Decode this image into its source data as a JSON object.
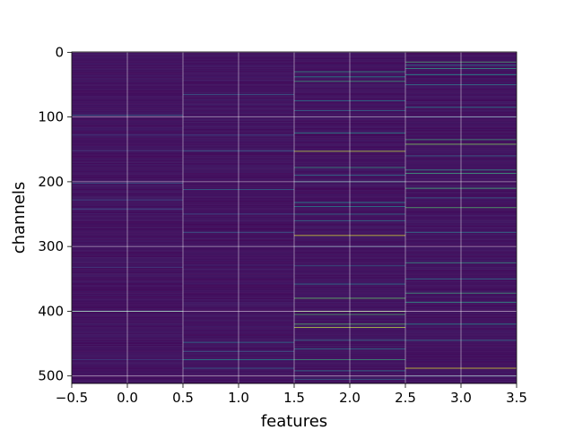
{
  "chart_data": {
    "type": "heatmap",
    "xlabel": "features",
    "ylabel": "channels",
    "x_ticks": [
      "−0.5",
      "0.0",
      "0.5",
      "1.0",
      "1.5",
      "2.0",
      "2.5",
      "3.0",
      "3.5"
    ],
    "x_tick_values": [
      -0.5,
      0.0,
      0.5,
      1.0,
      1.5,
      2.0,
      2.5,
      3.0,
      3.5
    ],
    "y_ticks": [
      "0",
      "100",
      "200",
      "300",
      "400",
      "500"
    ],
    "y_tick_values": [
      0,
      100,
      200,
      300,
      400,
      500
    ],
    "xlim": [
      -0.5,
      3.5
    ],
    "ylim": [
      511.5,
      -0.5
    ],
    "columns": [
      0,
      1,
      2,
      3
    ],
    "rows": 512,
    "colormap": "viridis",
    "grid": true,
    "background_value": 0.03,
    "noise_amplitude": 0.05,
    "highlights": [
      {
        "col": 0,
        "rows": [
          97,
          128,
          152,
          202,
          228,
          242,
          332,
          400,
          475
        ],
        "values": [
          0.35,
          0.2,
          0.2,
          0.3,
          0.25,
          0.25,
          0.2,
          0.6,
          0.2
        ]
      },
      {
        "col": 1,
        "rows": [
          65,
          128,
          152,
          212,
          250,
          278,
          448,
          462,
          475,
          488
        ],
        "values": [
          0.3,
          0.25,
          0.3,
          0.35,
          0.25,
          0.3,
          0.4,
          0.3,
          0.5,
          0.35
        ]
      },
      {
        "col": 2,
        "rows": [
          30,
          38,
          45,
          75,
          90,
          125,
          153,
          178,
          190,
          200,
          232,
          238,
          250,
          260,
          283,
          300,
          330,
          358,
          380,
          400,
          405,
          420,
          425,
          445,
          458,
          475,
          492,
          505
        ],
        "values": [
          0.55,
          0.5,
          0.6,
          0.4,
          0.35,
          0.5,
          0.9,
          0.55,
          0.4,
          0.5,
          0.5,
          0.45,
          0.4,
          0.4,
          0.95,
          0.35,
          0.35,
          0.4,
          0.75,
          0.8,
          0.65,
          0.7,
          0.9,
          0.4,
          0.4,
          0.6,
          0.4,
          0.35
        ]
      },
      {
        "col": 3,
        "rows": [
          15,
          20,
          25,
          35,
          50,
          85,
          100,
          135,
          142,
          160,
          182,
          187,
          210,
          225,
          240,
          278,
          325,
          350,
          372,
          386,
          420,
          445,
          488,
          500
        ],
        "values": [
          0.65,
          0.4,
          0.55,
          0.5,
          0.4,
          0.45,
          0.35,
          0.6,
          0.8,
          0.35,
          0.55,
          0.6,
          0.65,
          0.35,
          0.7,
          0.4,
          0.55,
          0.4,
          0.6,
          0.55,
          0.5,
          0.4,
          0.95,
          0.35
        ]
      }
    ]
  }
}
